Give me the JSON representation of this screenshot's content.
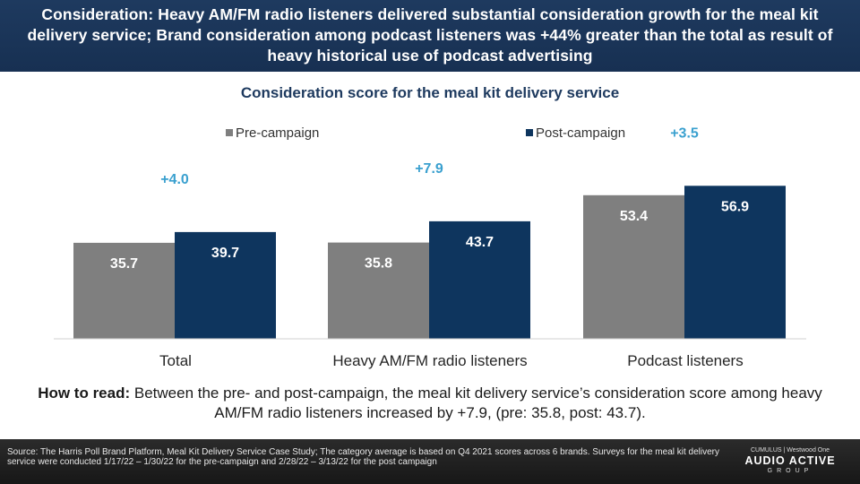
{
  "header": {
    "title": "Consideration: Heavy AM/FM radio listeners delivered substantial consideration growth for the meal kit delivery service; Brand consideration among podcast listeners was +44% greater than the total as result of heavy historical use of podcast advertising"
  },
  "chart_data": {
    "type": "bar",
    "title": "Consideration score for the meal kit delivery service",
    "categories": [
      "Total",
      "Heavy AM/FM radio listeners",
      "Podcast listeners"
    ],
    "series": [
      {
        "name": "Pre-campaign",
        "values": [
          35.7,
          35.8,
          53.4
        ],
        "color": "#7f7f7f"
      },
      {
        "name": "Post-campaign",
        "values": [
          39.7,
          43.7,
          56.9
        ],
        "color": "#0e355e"
      }
    ],
    "annotations": [
      "+4.0",
      "+7.9",
      "+3.5"
    ],
    "annotation_color": "#3aa0cf",
    "legend_position": "top",
    "ylim": [
      0,
      70
    ],
    "grid": false
  },
  "how_to_read": {
    "label": "How to read:",
    "text": "Between the pre- and post-campaign, the meal kit delivery service’s consideration score among heavy AM/FM radio listeners increased by +7.9, (pre: 35.8, post: 43.7)."
  },
  "footer": {
    "source": "Source: The Harris Poll Brand Platform, Meal Kit Delivery Service Case Study; The category average is based on Q4 2021 scores across 6 brands. Surveys for the meal kit delivery service were conducted 1/17/22 – 1/30/22 for the pre-campaign and 2/28/22 – 3/13/22 for the post campaign",
    "brand_top": "CUMULUS | Westwood One",
    "brand_name": "AUDIO ACTIVE",
    "brand_sub": "GROUP"
  }
}
